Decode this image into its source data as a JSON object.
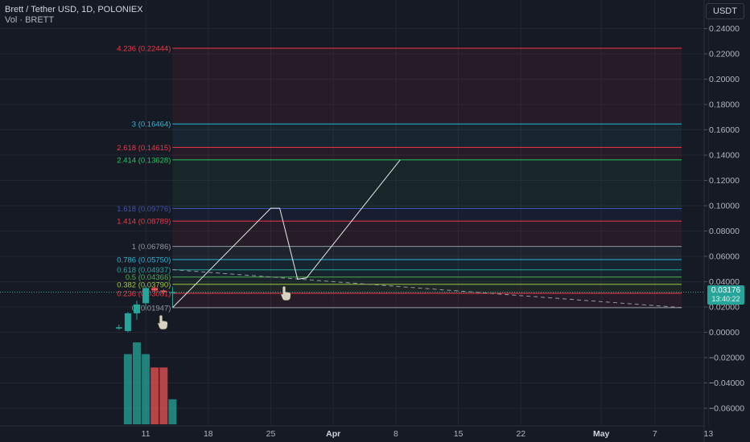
{
  "header": {
    "title": "Brett / Tether USD, 1D, POLONIEX",
    "volume_label": "Vol · BRETT"
  },
  "toolbar": {
    "currency": "USDT"
  },
  "price_tag": {
    "price": "0.03176",
    "countdown": "13:40:22"
  },
  "colors": {
    "background": "#161a25",
    "up": "#26a69a",
    "down": "#ef5350",
    "grid": "#232632",
    "axis_text": "#b2b5be"
  },
  "chart_data": {
    "type": "candlestick_with_fibonacci_extension",
    "ylim": [
      -0.07,
      0.24
    ],
    "y_ticks": [
      "0.24000",
      "0.22000",
      "0.20000",
      "0.18000",
      "0.16000",
      "0.14000",
      "0.12000",
      "0.10000",
      "0.08000",
      "0.06000",
      "0.04000",
      "0.02000",
      "0.00000",
      "−0.02000",
      "−0.04000",
      "−0.06000"
    ],
    "y_tick_values": [
      0.24,
      0.22,
      0.2,
      0.18,
      0.16,
      0.14,
      0.12,
      0.1,
      0.08,
      0.06,
      0.04,
      0.02,
      0.0,
      -0.02,
      -0.04,
      -0.06
    ],
    "x_ticks": [
      {
        "label": "11",
        "day": 11
      },
      {
        "label": "18",
        "day": 18
      },
      {
        "label": "25",
        "day": 25
      },
      {
        "label": "Apr",
        "day": 32
      },
      {
        "label": "8",
        "day": 39
      },
      {
        "label": "15",
        "day": 46
      },
      {
        "label": "22",
        "day": 53
      },
      {
        "label": "May",
        "day": 62
      },
      {
        "label": "7",
        "day": 68
      },
      {
        "label": "13",
        "day": 74
      }
    ],
    "candles": [
      {
        "day": 8,
        "open": 0.003,
        "high": 0.006,
        "low": 0.002,
        "close": 0.004
      },
      {
        "day": 9,
        "open": 0.001,
        "high": 0.016,
        "low": 0.0,
        "close": 0.015
      },
      {
        "day": 10,
        "open": 0.015,
        "high": 0.025,
        "low": 0.01,
        "close": 0.022
      },
      {
        "day": 11,
        "open": 0.023,
        "high": 0.037,
        "low": 0.018,
        "close": 0.035
      },
      {
        "day": 12,
        "open": 0.035,
        "high": 0.037,
        "low": 0.031,
        "close": 0.033
      },
      {
        "day": 13,
        "open": 0.033,
        "high": 0.034,
        "low": 0.03,
        "close": 0.032
      },
      {
        "day": 14,
        "open": 0.031,
        "high": 0.036,
        "low": 0.02,
        "close": 0.0318
      }
    ],
    "volume_relative": [
      {
        "day": 9,
        "value": 0.84,
        "dir": "up"
      },
      {
        "day": 10,
        "value": 0.98,
        "dir": "up"
      },
      {
        "day": 11,
        "value": 0.84,
        "dir": "up"
      },
      {
        "day": 12,
        "value": 0.68,
        "dir": "down"
      },
      {
        "day": 13,
        "value": 0.68,
        "dir": "down"
      },
      {
        "day": 14,
        "value": 0.3,
        "dir": "up"
      }
    ],
    "fib_levels": [
      {
        "label": "4.236 (0.22444)",
        "value": 0.22444,
        "color": "#f23645"
      },
      {
        "label": "3 (0.16464)",
        "value": 0.16464,
        "color": "#2ab7d8"
      },
      {
        "label": "2.618 (0.14615)",
        "value": 0.14615,
        "color": "#f23645"
      },
      {
        "label": "2.414 (0.13628)",
        "value": 0.13628,
        "color": "#22c55e"
      },
      {
        "label": "1.618 (0.09776)",
        "value": 0.09776,
        "color": "#3f51b5"
      },
      {
        "label": "1.414 (0.08789)",
        "value": 0.08789,
        "color": "#f23645"
      },
      {
        "label": "1 (0.06786)",
        "value": 0.06786,
        "color": "#9598a1"
      },
      {
        "label": "0.786 (0.05750)",
        "value": 0.0575,
        "color": "#2ab7d8"
      },
      {
        "label": "0.618 (0.04937)",
        "value": 0.04937,
        "color": "#26a69a"
      },
      {
        "label": "0.5 (0.04366)",
        "value": 0.04366,
        "color": "#4caf50"
      },
      {
        "label": "0.382 (0.03790)",
        "value": 0.0379,
        "color": "#9dc93f"
      },
      {
        "label": "0.236 (0.03081)",
        "value": 0.03081,
        "color": "#f23645"
      },
      {
        "label": "0 (0.01947)",
        "value": 0.01947,
        "color": "#9598a1"
      }
    ],
    "fib_range_days": [
      14,
      71
    ],
    "zigzag_path": [
      {
        "day": 14,
        "price": 0.0195
      },
      {
        "day": 25,
        "price": 0.098
      },
      {
        "day": 26,
        "price": 0.098
      },
      {
        "day": 28,
        "price": 0.042
      },
      {
        "day": 29,
        "price": 0.043
      },
      {
        "day": 39.5,
        "price": 0.1363
      }
    ],
    "dashed_trend": [
      {
        "day": 14,
        "price": 0.0495
      },
      {
        "day": 71,
        "price": 0.0195
      }
    ],
    "current_price": 0.03176
  }
}
